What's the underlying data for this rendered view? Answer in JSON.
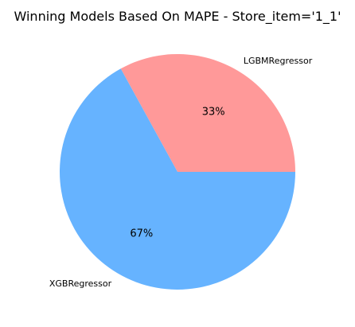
{
  "chart_data": {
    "type": "pie",
    "title": "Winning Models Based On MAPE - Store_item='1_1'",
    "labels": [
      "LGBMRegressor",
      "XGBRegressor"
    ],
    "values": [
      33,
      67
    ],
    "percent_labels": [
      "33%",
      "67%"
    ],
    "colors": [
      "#ff9999",
      "#66b3ff"
    ]
  }
}
